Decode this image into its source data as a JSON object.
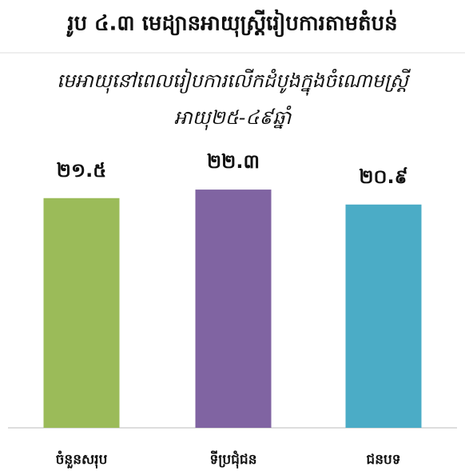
{
  "chart_data": {
    "type": "bar",
    "title": "រូប ៤.៣ មេដ្យានអាយុស្ត្រីរៀបការតាមតំបន់",
    "subtitle": [
      "មេអាយុនៅពេលរៀបការលើកដំបូងក្នុងចំណោមស្ត្រី",
      "អាយុ២៥-៤៩ឆ្នាំ"
    ],
    "categories": [
      "ចំនួនសរុប",
      "ទីប្រជុំជន",
      "ជនបទ"
    ],
    "values": [
      21.5,
      22.3,
      20.9
    ],
    "value_labels": [
      "២១.៥",
      "២២.៣",
      "២០.៩"
    ],
    "colors": [
      "#9bbb59",
      "#8064a2",
      "#4bacc6"
    ],
    "ylim": [
      0,
      25
    ]
  }
}
